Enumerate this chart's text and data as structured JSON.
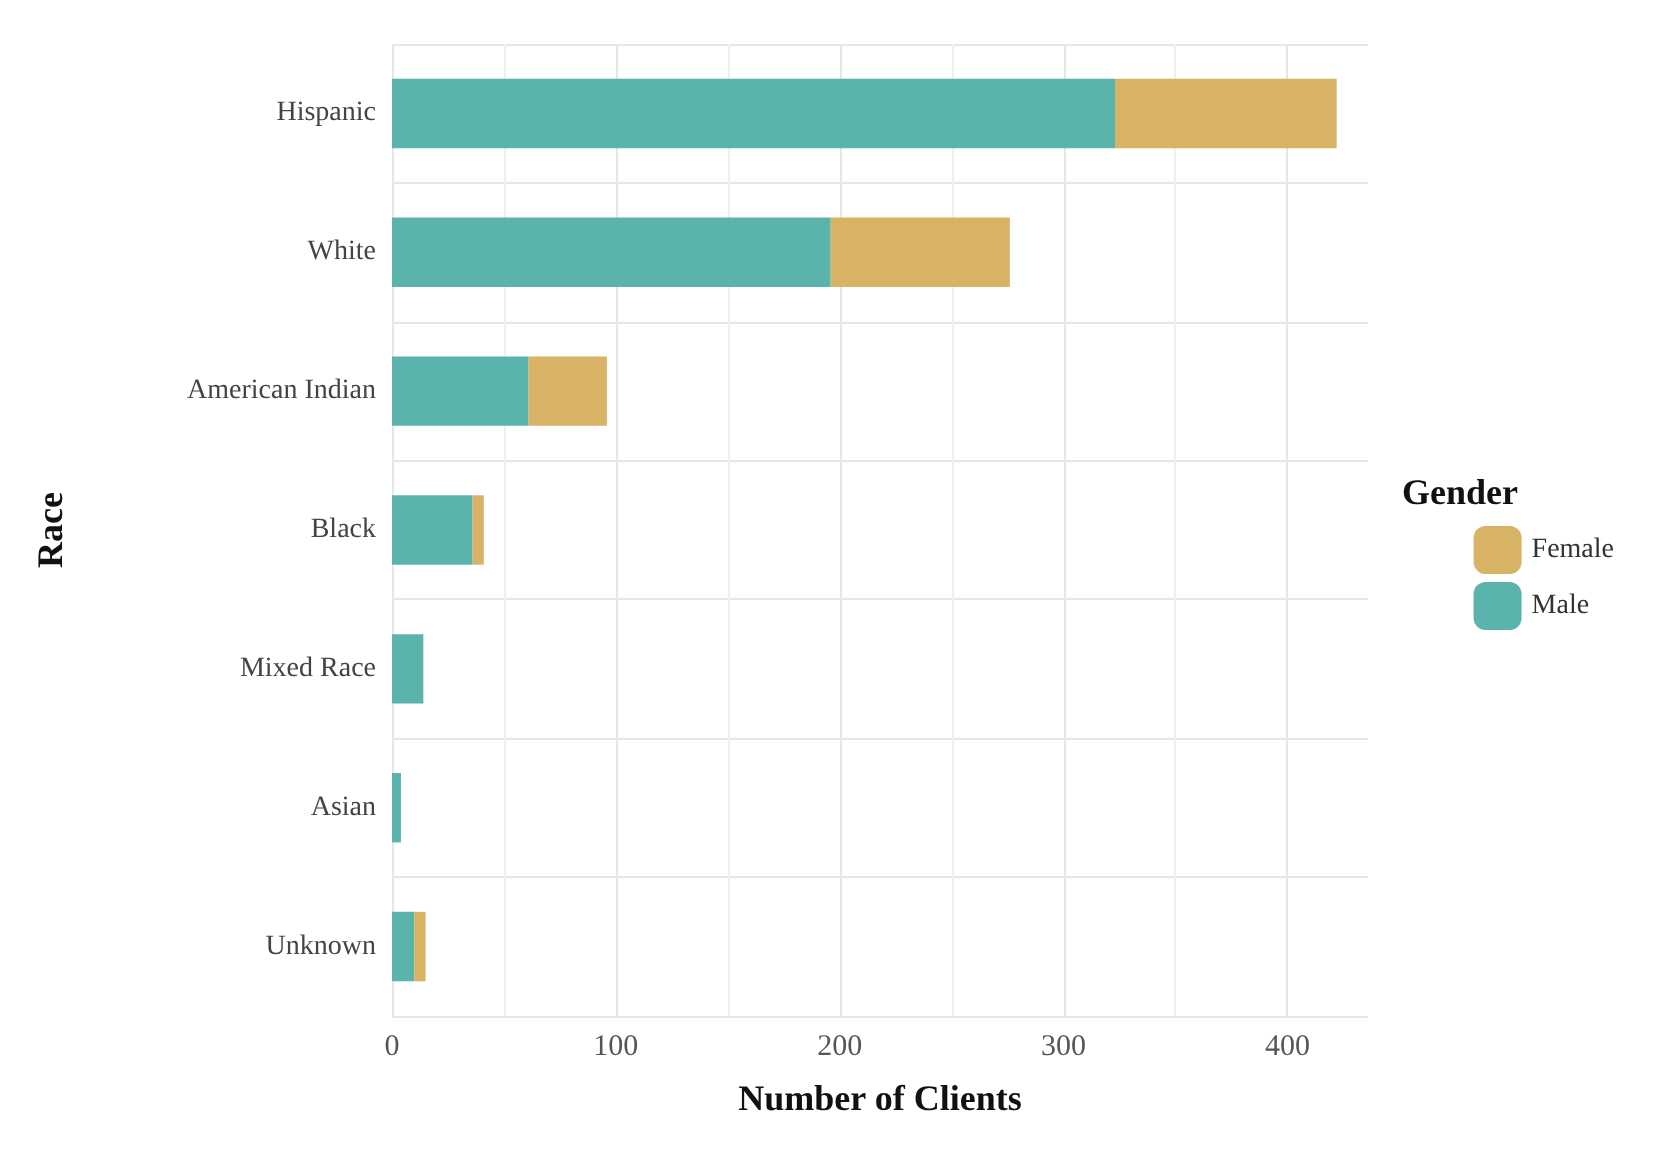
{
  "chart_data": {
    "type": "bar",
    "orientation": "horizontal",
    "stacked": true,
    "xlabel": "Number of Clients",
    "ylabel": "Race",
    "legend_title": "Gender",
    "categories": [
      "Hispanic",
      "White",
      "American Indian",
      "Black",
      "Mixed Race",
      "Asian",
      "Unknown"
    ],
    "series": [
      {
        "name": "Male",
        "color": "#5ab4ac",
        "values": [
          323,
          196,
          61,
          36,
          14,
          4,
          10
        ]
      },
      {
        "name": "Female",
        "color": "#d8b365",
        "values": [
          99,
          80,
          35,
          5,
          0,
          0,
          5
        ]
      }
    ],
    "xlim": [
      0,
      436
    ],
    "xticks": [
      0,
      100,
      200,
      300,
      400
    ],
    "grid": true,
    "legend": "right"
  }
}
